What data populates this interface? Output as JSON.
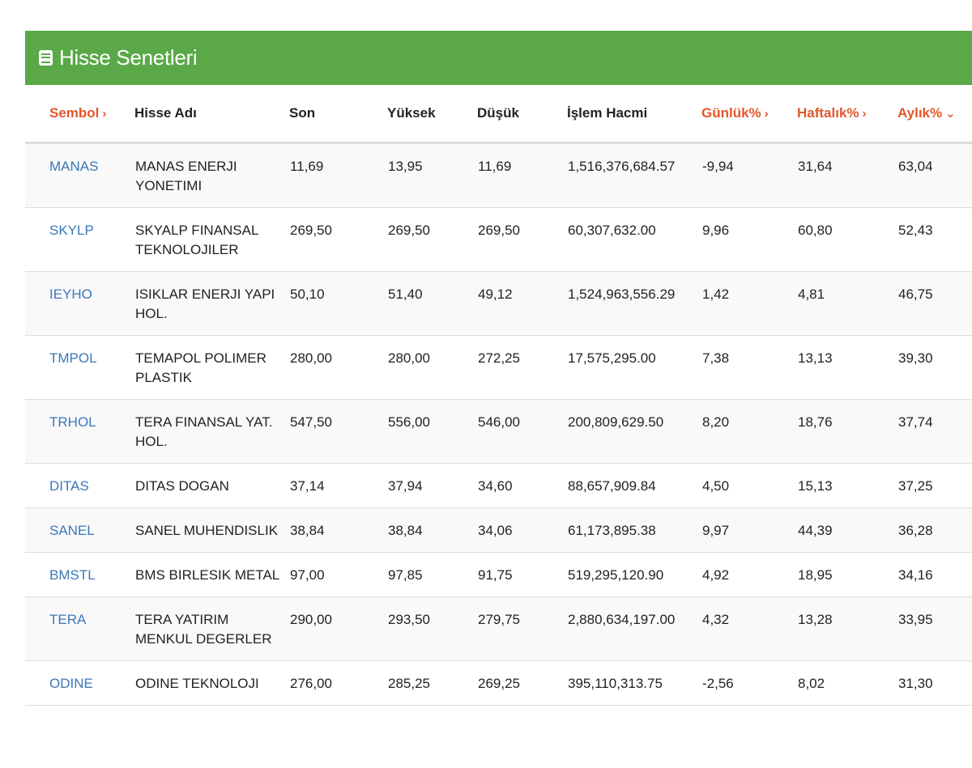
{
  "panel": {
    "title": "Hisse Senetleri",
    "icon": "book-icon",
    "header_color": "#5aa847"
  },
  "columns": [
    {
      "label": "Sembol",
      "sortable": true,
      "chevron": "›"
    },
    {
      "label": "Hisse Adı",
      "sortable": false,
      "chevron": ""
    },
    {
      "label": "Son",
      "sortable": false,
      "chevron": ""
    },
    {
      "label": "Yüksek",
      "sortable": false,
      "chevron": ""
    },
    {
      "label": "Düşük",
      "sortable": false,
      "chevron": ""
    },
    {
      "label": "İşlem Hacmi",
      "sortable": false,
      "chevron": ""
    },
    {
      "label": "Günlük%",
      "sortable": true,
      "chevron": "›"
    },
    {
      "label": "Haftalık%",
      "sortable": true,
      "chevron": "›"
    },
    {
      "label": "Aylık%",
      "sortable": true,
      "chevron": "⌄"
    }
  ],
  "accent_color": "#e2572b",
  "link_color": "#3a78b8",
  "rows": [
    {
      "symbol": "MANAS",
      "name": "MANAS ENERJI YONETIMI",
      "son": "11,69",
      "yuksek": "13,95",
      "dusuk": "11,69",
      "hacim": "1,516,376,684.57",
      "gunluk": "-9,94",
      "haftalik": "31,64",
      "aylik": "63,04"
    },
    {
      "symbol": "SKYLP",
      "name": "SKYALP FINANSAL TEKNOLOJILER",
      "son": "269,50",
      "yuksek": "269,50",
      "dusuk": "269,50",
      "hacim": "60,307,632.00",
      "gunluk": "9,96",
      "haftalik": "60,80",
      "aylik": "52,43"
    },
    {
      "symbol": "IEYHO",
      "name": "ISIKLAR ENERJI YAPI HOL.",
      "son": "50,10",
      "yuksek": "51,40",
      "dusuk": "49,12",
      "hacim": "1,524,963,556.29",
      "gunluk": "1,42",
      "haftalik": "4,81",
      "aylik": "46,75"
    },
    {
      "symbol": "TMPOL",
      "name": "TEMAPOL POLIMER PLASTIK",
      "son": "280,00",
      "yuksek": "280,00",
      "dusuk": "272,25",
      "hacim": "17,575,295.00",
      "gunluk": "7,38",
      "haftalik": "13,13",
      "aylik": "39,30"
    },
    {
      "symbol": "TRHOL",
      "name": "TERA FINANSAL YAT. HOL.",
      "son": "547,50",
      "yuksek": "556,00",
      "dusuk": "546,00",
      "hacim": "200,809,629.50",
      "gunluk": "8,20",
      "haftalik": "18,76",
      "aylik": "37,74"
    },
    {
      "symbol": "DITAS",
      "name": "DITAS DOGAN",
      "son": "37,14",
      "yuksek": "37,94",
      "dusuk": "34,60",
      "hacim": "88,657,909.84",
      "gunluk": "4,50",
      "haftalik": "15,13",
      "aylik": "37,25"
    },
    {
      "symbol": "SANEL",
      "name": "SANEL MUHENDISLIK",
      "son": "38,84",
      "yuksek": "38,84",
      "dusuk": "34,06",
      "hacim": "61,173,895.38",
      "gunluk": "9,97",
      "haftalik": "44,39",
      "aylik": "36,28"
    },
    {
      "symbol": "BMSTL",
      "name": "BMS BIRLESIK METAL",
      "son": "97,00",
      "yuksek": "97,85",
      "dusuk": "91,75",
      "hacim": "519,295,120.90",
      "gunluk": "4,92",
      "haftalik": "18,95",
      "aylik": "34,16"
    },
    {
      "symbol": "TERA",
      "name": "TERA YATIRIM MENKUL DEGERLER",
      "son": "290,00",
      "yuksek": "293,50",
      "dusuk": "279,75",
      "hacim": "2,880,634,197.00",
      "gunluk": "4,32",
      "haftalik": "13,28",
      "aylik": "33,95"
    },
    {
      "symbol": "ODINE",
      "name": "ODINE TEKNOLOJI",
      "son": "276,00",
      "yuksek": "285,25",
      "dusuk": "269,25",
      "hacim": "395,110,313.75",
      "gunluk": "-2,56",
      "haftalik": "8,02",
      "aylik": "31,30"
    }
  ]
}
